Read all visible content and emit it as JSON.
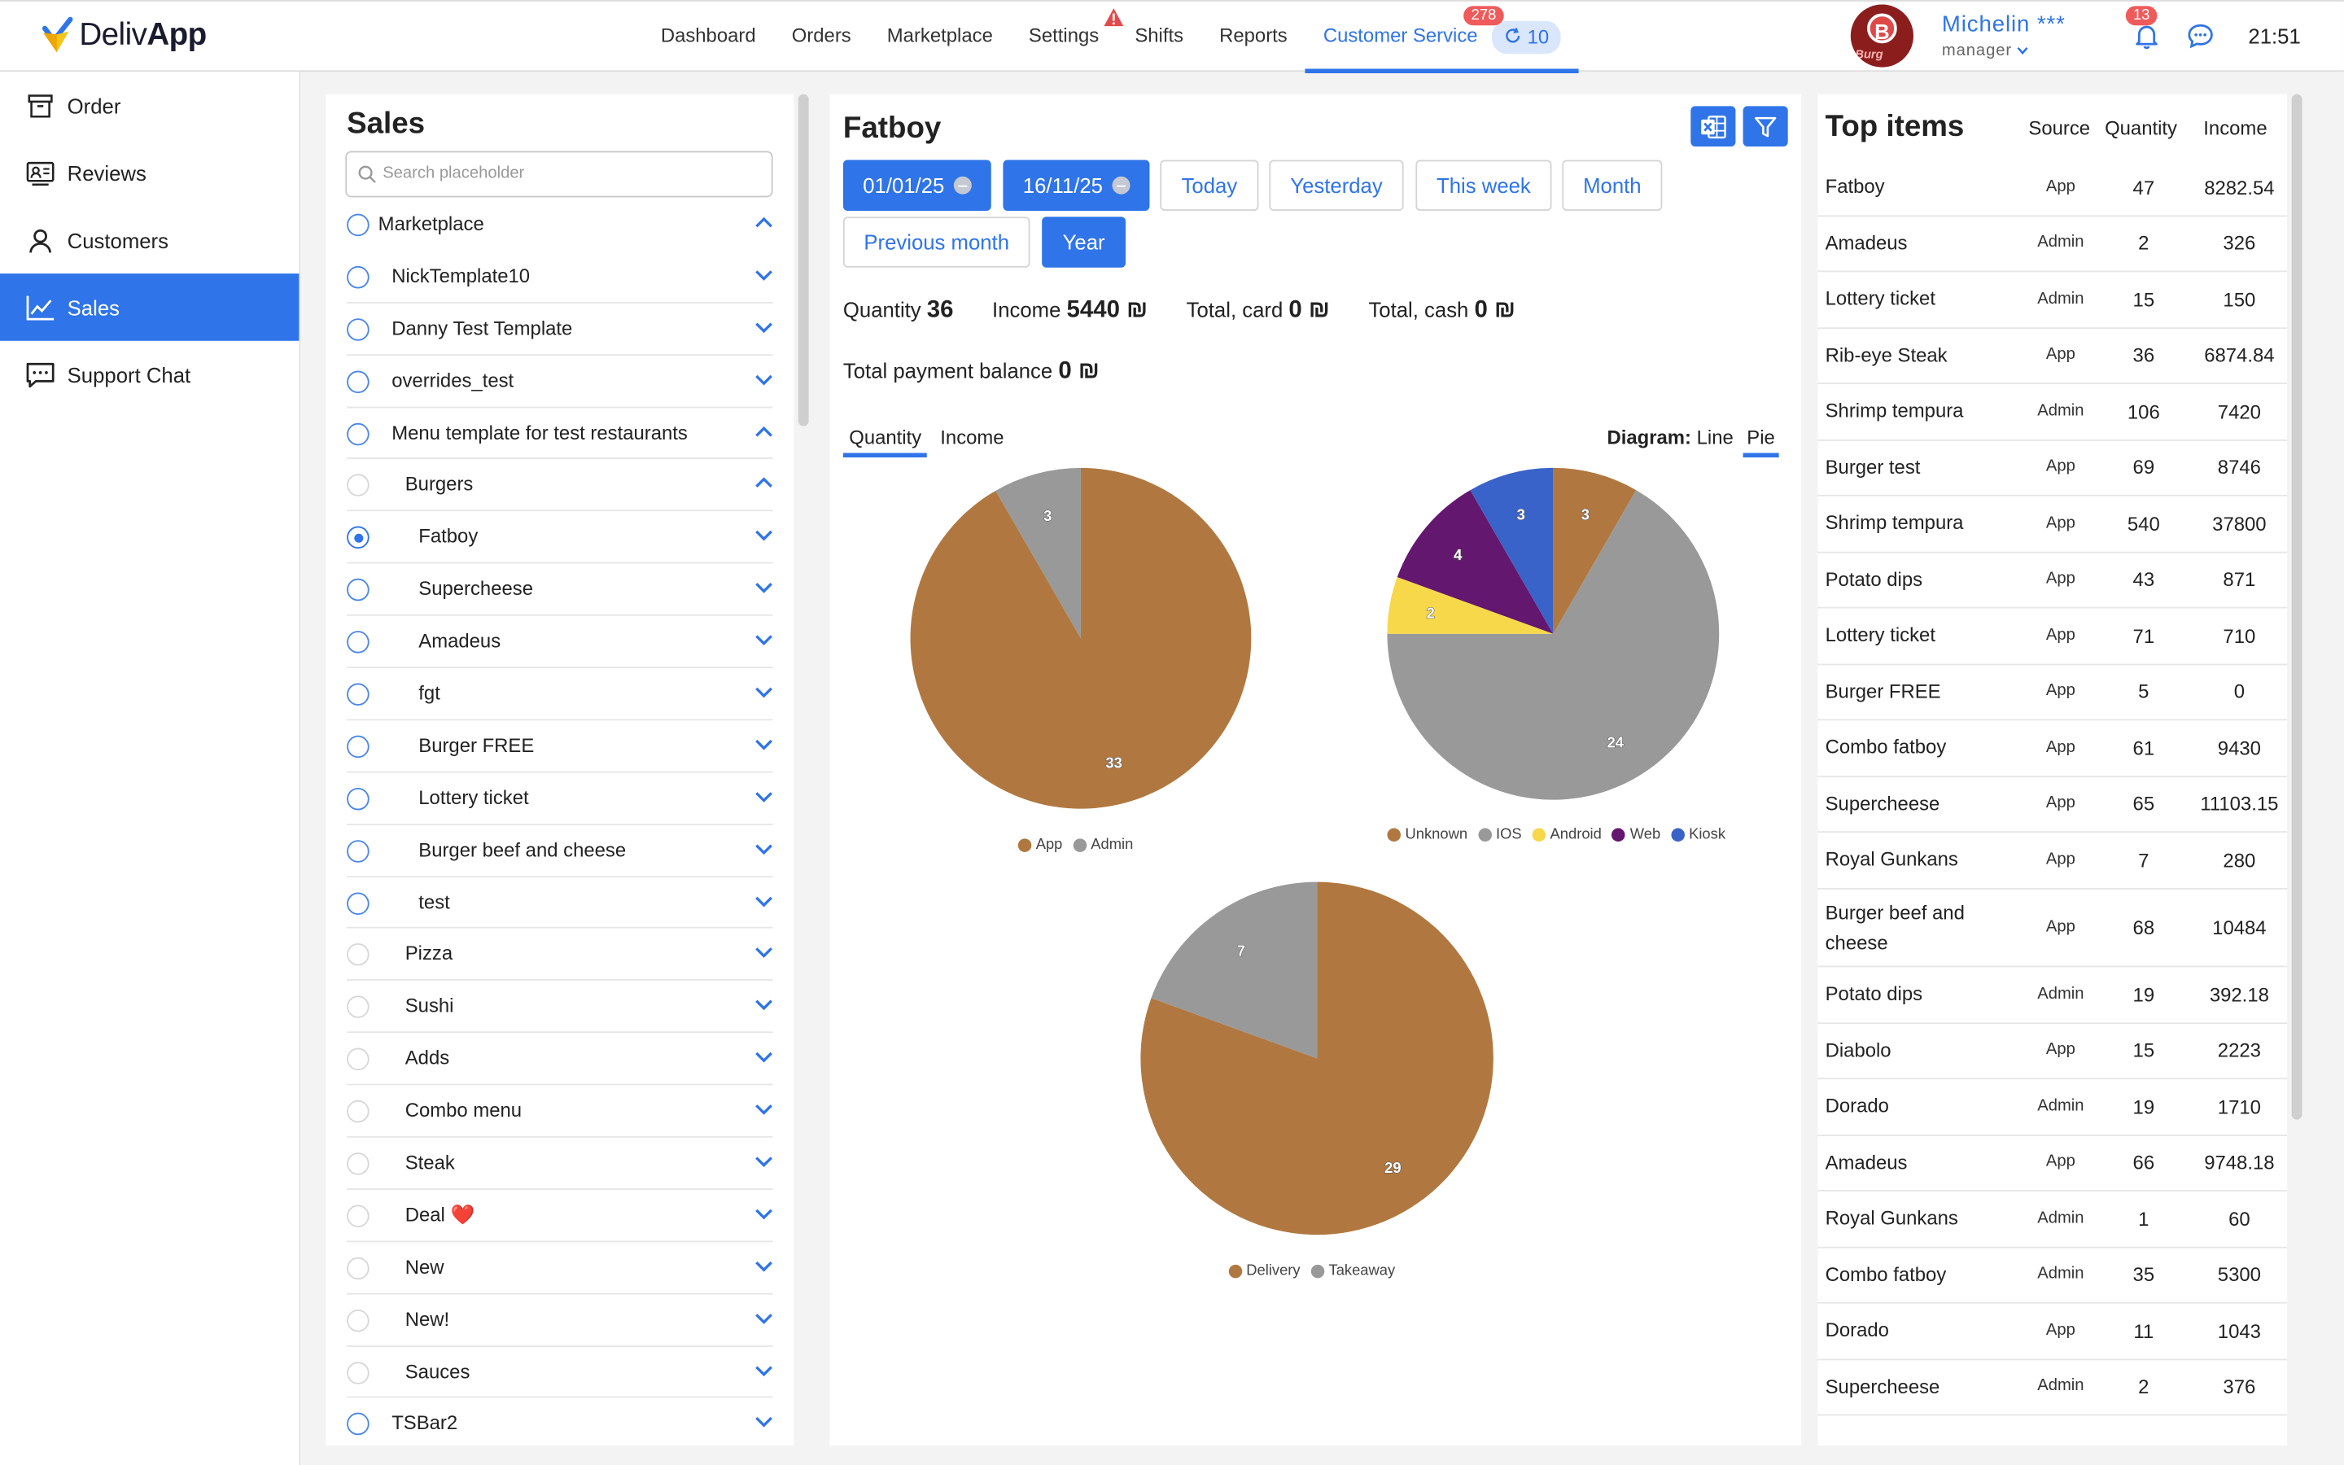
{
  "app": {
    "name_regular": "Deliv",
    "name_bold": "App"
  },
  "nav": {
    "items": [
      "Dashboard",
      "Orders",
      "Marketplace",
      "Settings",
      "Shifts",
      "Reports",
      "Customer Service"
    ],
    "active": "Customer Service",
    "customer_service_badge": "278",
    "customer_service_count": "10"
  },
  "user": {
    "name": "Michelin ***",
    "role": "manager",
    "avatar_letter": "B",
    "avatar_text": "Burg",
    "notifications": "13"
  },
  "clock": "21:51",
  "sidebar": {
    "items": [
      {
        "label": "Order",
        "icon": "archive-box-icon"
      },
      {
        "label": "Reviews",
        "icon": "reviews-icon"
      },
      {
        "label": "Customers",
        "icon": "person-icon"
      },
      {
        "label": "Sales",
        "icon": "chart-line-icon",
        "active": true
      },
      {
        "label": "Support Chat",
        "icon": "chat-bubble-icon"
      }
    ]
  },
  "sales": {
    "title": "Sales",
    "search_placeholder": "Search placeholder",
    "tree": [
      {
        "label": "Marketplace",
        "level": 0,
        "expanded": true,
        "radio": "normal"
      },
      {
        "label": "NickTemplate10",
        "level": 1,
        "expanded": false,
        "radio": "normal"
      },
      {
        "label": "Danny Test Template",
        "level": 1,
        "expanded": false,
        "radio": "normal"
      },
      {
        "label": "overrides_test",
        "level": 1,
        "expanded": false,
        "radio": "normal"
      },
      {
        "label": "Menu template for test restaurants",
        "level": 1,
        "expanded": true,
        "radio": "normal"
      },
      {
        "label": "Burgers",
        "level": 2,
        "expanded": true,
        "radio": "light"
      },
      {
        "label": "Fatboy",
        "level": 3,
        "expanded": false,
        "radio": "selected"
      },
      {
        "label": "Supercheese",
        "level": 3,
        "expanded": false,
        "radio": "normal"
      },
      {
        "label": "Amadeus",
        "level": 3,
        "expanded": false,
        "radio": "normal"
      },
      {
        "label": "fgt",
        "level": 3,
        "expanded": false,
        "radio": "normal"
      },
      {
        "label": "Burger FREE",
        "level": 3,
        "expanded": false,
        "radio": "normal"
      },
      {
        "label": "Lottery ticket",
        "level": 3,
        "expanded": false,
        "radio": "normal"
      },
      {
        "label": "Burger beef and cheese",
        "level": 3,
        "expanded": false,
        "radio": "normal"
      },
      {
        "label": "test",
        "level": 3,
        "expanded": false,
        "radio": "normal"
      },
      {
        "label": "Pizza",
        "level": 2,
        "expanded": false,
        "radio": "light"
      },
      {
        "label": "Sushi",
        "level": 2,
        "expanded": false,
        "radio": "light"
      },
      {
        "label": "Adds",
        "level": 2,
        "expanded": false,
        "radio": "light"
      },
      {
        "label": "Combo menu",
        "level": 2,
        "expanded": false,
        "radio": "light"
      },
      {
        "label": "Steak",
        "level": 2,
        "expanded": false,
        "radio": "light"
      },
      {
        "label": "Deal ❤️",
        "level": 2,
        "expanded": false,
        "radio": "light"
      },
      {
        "label": "New",
        "level": 2,
        "expanded": false,
        "radio": "light"
      },
      {
        "label": "New!",
        "level": 2,
        "expanded": false,
        "radio": "light"
      },
      {
        "label": "Sauces",
        "level": 2,
        "expanded": false,
        "radio": "light"
      },
      {
        "label": "TSBar2",
        "level": 1,
        "expanded": false,
        "radio": "normal"
      }
    ]
  },
  "main": {
    "title": "Fatboy",
    "date_from": "01/01/25",
    "date_to": "16/11/25",
    "ranges": [
      "Today",
      "Yesterday",
      "This week",
      "Month",
      "Previous month",
      "Year"
    ],
    "active_range": "Year",
    "stats": {
      "quantity_label": "Quantity",
      "quantity_value": "36",
      "income_label": "Income",
      "income_value": "5440 ₪",
      "card_label": "Total, card",
      "card_value": "0 ₪",
      "cash_label": "Total, cash",
      "cash_value": "0 ₪",
      "balance_label": "Total payment balance",
      "balance_value": "0 ₪"
    },
    "tabs": [
      "Quantity",
      "Income"
    ],
    "active_tab": "Quantity",
    "diagram_label": "Diagram:",
    "diagram_options": [
      "Line",
      "Pie"
    ],
    "diagram_active": "Pie"
  },
  "chart_data": [
    {
      "type": "pie",
      "labels": [
        "App",
        "Admin"
      ],
      "values": [
        33,
        3
      ],
      "colors": [
        "#b07840",
        "#999999"
      ]
    },
    {
      "type": "pie",
      "labels": [
        "Unknown",
        "IOS",
        "Android",
        "Web",
        "Kiosk"
      ],
      "values": [
        3,
        24,
        2,
        4,
        3
      ],
      "colors": [
        "#b07840",
        "#999999",
        "#f7d84a",
        "#64176e",
        "#3a63c9"
      ]
    },
    {
      "type": "pie",
      "labels": [
        "Delivery",
        "Takeaway"
      ],
      "values": [
        29,
        7
      ],
      "colors": [
        "#b07840",
        "#999999"
      ]
    }
  ],
  "top_items": {
    "title": "Top items",
    "columns": [
      "Source",
      "Quantity",
      "Income"
    ],
    "rows": [
      {
        "name": "Fatboy",
        "source": "App",
        "quantity": "47",
        "income": "8282.54"
      },
      {
        "name": "Amadeus",
        "source": "Admin",
        "quantity": "2",
        "income": "326"
      },
      {
        "name": "Lottery ticket",
        "source": "Admin",
        "quantity": "15",
        "income": "150"
      },
      {
        "name": "Rib-eye Steak",
        "source": "App",
        "quantity": "36",
        "income": "6874.84"
      },
      {
        "name": "Shrimp tempura",
        "source": "Admin",
        "quantity": "106",
        "income": "7420"
      },
      {
        "name": "Burger test",
        "source": "App",
        "quantity": "69",
        "income": "8746"
      },
      {
        "name": "Shrimp tempura",
        "source": "App",
        "quantity": "540",
        "income": "37800"
      },
      {
        "name": "Potato dips",
        "source": "App",
        "quantity": "43",
        "income": "871"
      },
      {
        "name": "Lottery ticket",
        "source": "App",
        "quantity": "71",
        "income": "710"
      },
      {
        "name": "Burger FREE",
        "source": "App",
        "quantity": "5",
        "income": "0"
      },
      {
        "name": "Combo fatboy",
        "source": "App",
        "quantity": "61",
        "income": "9430"
      },
      {
        "name": "Supercheese",
        "source": "App",
        "quantity": "65",
        "income": "11103.15"
      },
      {
        "name": "Royal Gunkans",
        "source": "App",
        "quantity": "7",
        "income": "280"
      },
      {
        "name": "Burger beef and cheese",
        "source": "App",
        "quantity": "68",
        "income": "10484"
      },
      {
        "name": "Potato dips",
        "source": "Admin",
        "quantity": "19",
        "income": "392.18"
      },
      {
        "name": "Diabolo",
        "source": "App",
        "quantity": "15",
        "income": "2223"
      },
      {
        "name": "Dorado",
        "source": "Admin",
        "quantity": "19",
        "income": "1710"
      },
      {
        "name": "Amadeus",
        "source": "App",
        "quantity": "66",
        "income": "9748.18"
      },
      {
        "name": "Royal Gunkans",
        "source": "Admin",
        "quantity": "1",
        "income": "60"
      },
      {
        "name": "Combo fatboy",
        "source": "Admin",
        "quantity": "35",
        "income": "5300"
      },
      {
        "name": "Dorado",
        "source": "App",
        "quantity": "11",
        "income": "1043"
      },
      {
        "name": "Supercheese",
        "source": "Admin",
        "quantity": "2",
        "income": "376"
      }
    ]
  },
  "colors": {
    "accent": "#2f74e8",
    "badge": "#ef5b5b"
  }
}
